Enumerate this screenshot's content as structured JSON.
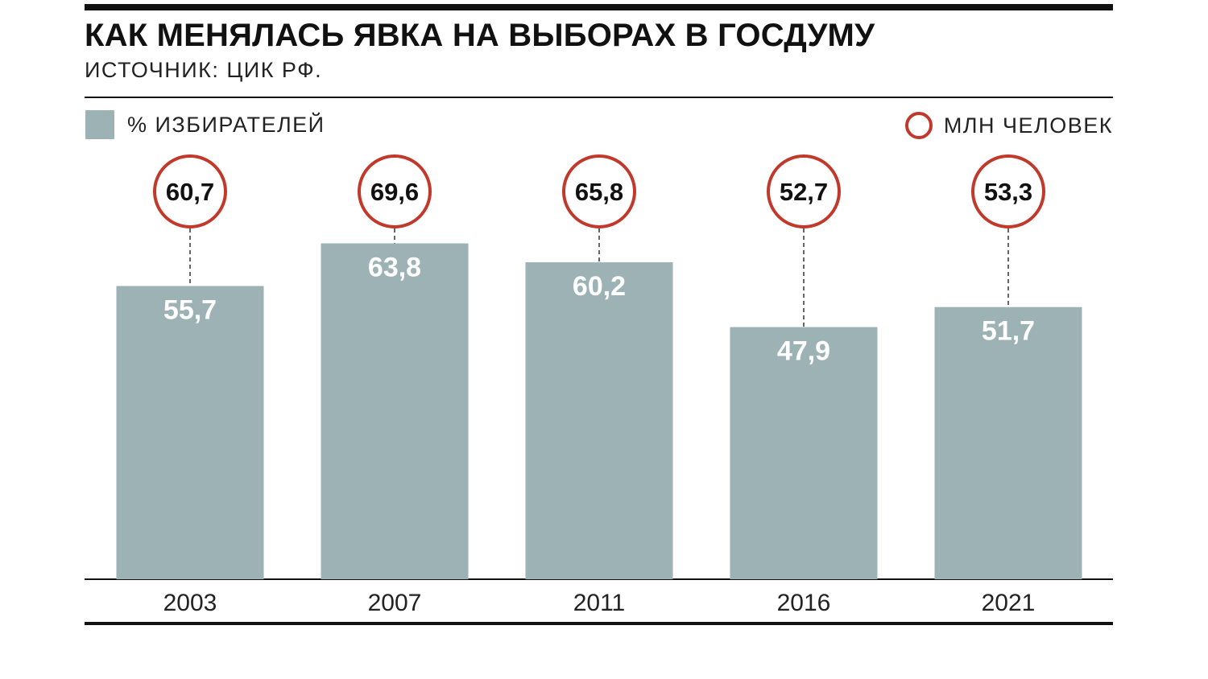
{
  "colors": {
    "bar": "#9cb2b5",
    "circle": "#c0392b",
    "ink": "#111111",
    "bar_label": "#ffffff"
  },
  "header": {
    "title": "КАК МЕНЯЛАСЬ ЯВКА НА ВЫБОРАХ В ГОСДУМУ",
    "source": "ИСТОЧНИК: ЦИК РФ."
  },
  "legend": {
    "percent_label": "% ИЗБИРАТЕЛЕЙ",
    "millions_label": "МЛН ЧЕЛОВЕК"
  },
  "chart_data": {
    "type": "bar",
    "title": "КАК МЕНЯЛАСЬ ЯВКА НА ВЫБОРАХ В ГОСДУМУ",
    "xlabel": "",
    "ylabel": "",
    "categories": [
      "2003",
      "2007",
      "2011",
      "2016",
      "2021"
    ],
    "series": [
      {
        "name": "% ИЗБИРАТЕЛЕЙ",
        "values": [
          55.7,
          63.8,
          60.2,
          47.9,
          51.7
        ],
        "labels": [
          "55,7",
          "63,8",
          "60,2",
          "47,9",
          "51,7"
        ]
      },
      {
        "name": "МЛН ЧЕЛОВЕК",
        "values": [
          60.7,
          69.6,
          65.8,
          52.7,
          53.3
        ],
        "labels": [
          "60,7",
          "69,6",
          "65,8",
          "52,7",
          "53,3"
        ]
      }
    ],
    "ylim": [
      0,
      100
    ],
    "grid": false,
    "legend": "top"
  }
}
